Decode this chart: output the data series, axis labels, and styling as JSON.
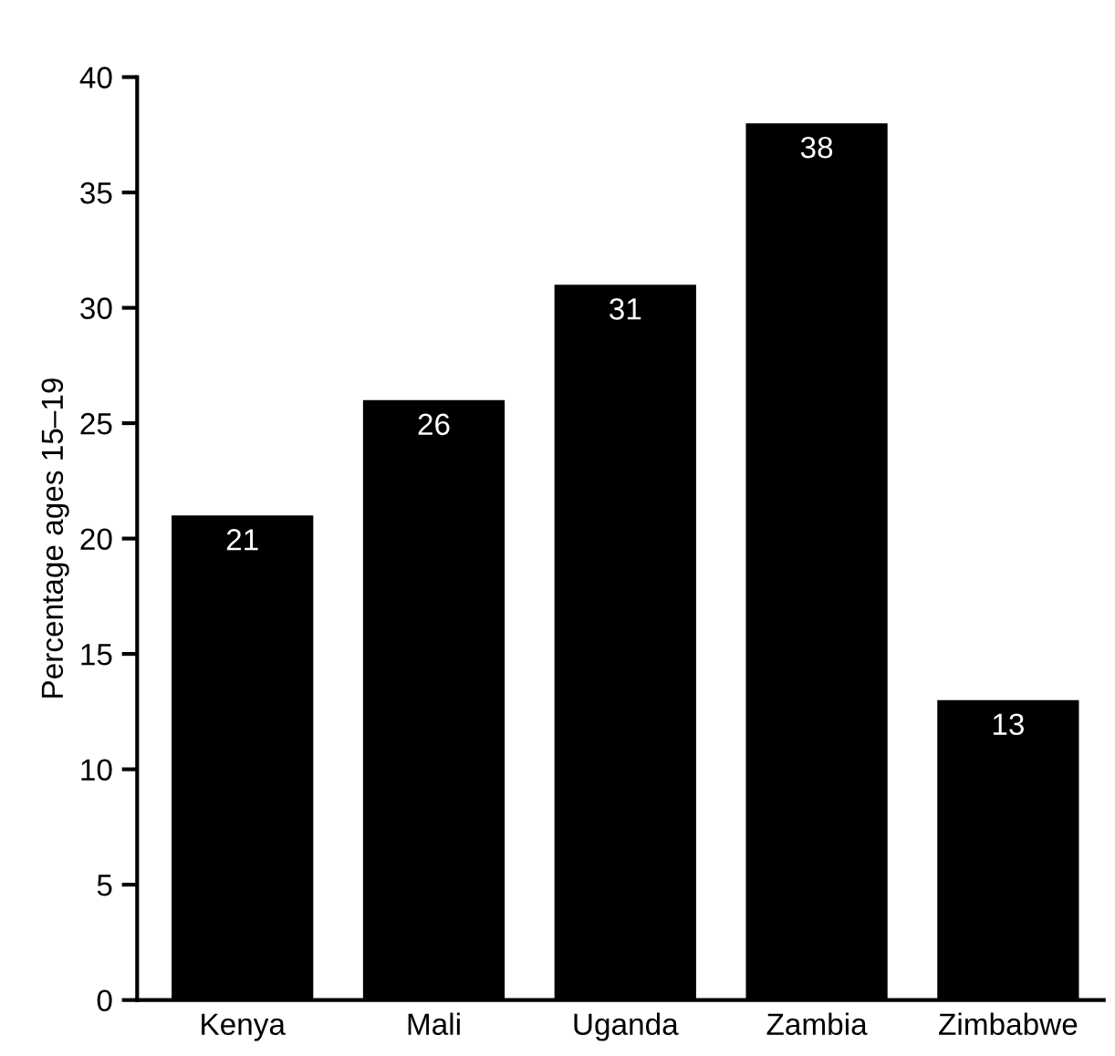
{
  "chart_data": {
    "type": "bar",
    "ylabel": "Percentage ages 15–19",
    "categories": [
      "Kenya",
      "Mali",
      "Uganda",
      "Zambia",
      "Zimbabwe"
    ],
    "values": [
      21,
      26,
      31,
      38,
      13
    ],
    "color": "#000000",
    "ylim": [
      0,
      40
    ],
    "yticks": [
      0,
      5,
      10,
      15,
      20,
      25,
      30,
      35,
      40
    ],
    "data_labels": true,
    "grid": false,
    "legend": false
  }
}
